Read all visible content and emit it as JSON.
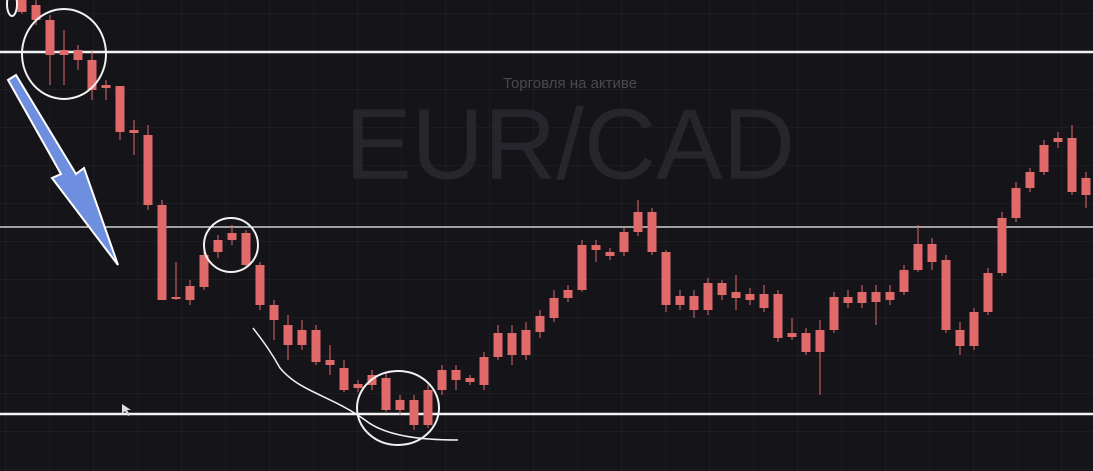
{
  "chart_data": {
    "type": "candlestick",
    "subtitle": "Торговля на активе",
    "title": "EUR/CAD",
    "up_color": "#4dae7c",
    "down_color": "#e06a6a",
    "ylim": [
      0,
      471
    ],
    "levels": [
      419,
      244,
      57
    ],
    "open": [
      471,
      466,
      451,
      421,
      421,
      411,
      386,
      385,
      341,
      336,
      266,
      174,
      185,
      216,
      231,
      238,
      238,
      206,
      166,
      146,
      141,
      141,
      111,
      103,
      87,
      96,
      93,
      71,
      71,
      81,
      101,
      101,
      93,
      114,
      138,
      138,
      141,
      155,
      173,
      181,
      226,
      226,
      219,
      239,
      259,
      259,
      219,
      175,
      175,
      188,
      188,
      179,
      177,
      177,
      177,
      138,
      138,
      141,
      174,
      174,
      179,
      179,
      179,
      201,
      227,
      227,
      211,
      141,
      159,
      198,
      253,
      283,
      299,
      326,
      333,
      333,
      293
    ],
    "high": [
      471,
      471,
      456,
      441,
      426,
      421,
      391,
      385,
      351,
      346,
      271,
      209,
      191,
      221,
      236,
      246,
      241,
      209,
      171,
      156,
      151,
      146,
      126,
      111,
      91,
      101,
      99,
      76,
      76,
      86,
      106,
      106,
      96,
      119,
      146,
      146,
      149,
      161,
      181,
      186,
      231,
      231,
      223,
      243,
      271,
      263,
      221,
      181,
      181,
      193,
      191,
      196,
      183,
      186,
      181,
      153,
      143,
      151,
      179,
      181,
      186,
      186,
      186,
      206,
      246,
      233,
      216,
      149,
      163,
      203,
      259,
      289,
      303,
      331,
      339,
      346,
      299
    ],
    "low": [
      457,
      446,
      386,
      386,
      401,
      371,
      371,
      331,
      316,
      261,
      171,
      171,
      166,
      181,
      213,
      226,
      203,
      161,
      131,
      111,
      121,
      106,
      96,
      79,
      79,
      81,
      59,
      56,
      41,
      43,
      76,
      81,
      86,
      81,
      111,
      106,
      111,
      133,
      149,
      169,
      179,
      209,
      211,
      215,
      235,
      216,
      159,
      161,
      153,
      156,
      171,
      161,
      166,
      159,
      129,
      131,
      116,
      76,
      138,
      163,
      163,
      146,
      166,
      176,
      199,
      201,
      138,
      116,
      121,
      156,
      195,
      249,
      279,
      296,
      323,
      276,
      263
    ],
    "close": [
      459,
      451,
      416,
      416,
      411,
      381,
      383,
      339,
      338,
      266,
      171,
      172,
      171,
      184,
      219,
      231,
      206,
      166,
      151,
      126,
      126,
      109,
      106,
      81,
      83,
      86,
      61,
      61,
      46,
      46,
      81,
      91,
      89,
      86,
      114,
      116,
      116,
      139,
      153,
      173,
      181,
      221,
      215,
      219,
      239,
      219,
      166,
      166,
      161,
      161,
      176,
      173,
      171,
      163,
      133,
      134,
      119,
      119,
      141,
      168,
      168,
      169,
      171,
      179,
      201,
      209,
      141,
      125,
      125,
      159,
      198,
      253,
      283,
      299,
      329,
      279,
      276
    ]
  }
}
